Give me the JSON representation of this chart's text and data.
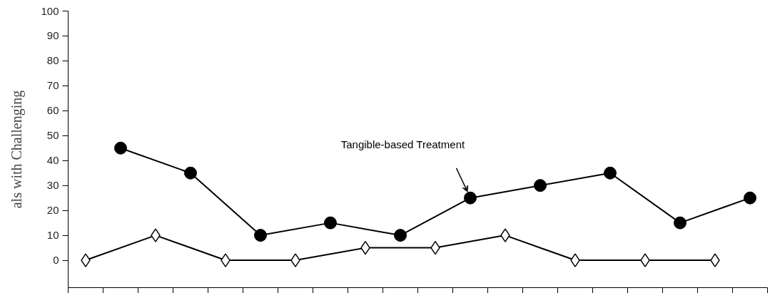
{
  "chart_data": {
    "type": "line",
    "ylabel": "als with Challenging",
    "ylim": [
      -11,
      100
    ],
    "categories": [
      null,
      null,
      null,
      null,
      null,
      null,
      null,
      null,
      null,
      null,
      null,
      null,
      null,
      null,
      null,
      null,
      null,
      null,
      null,
      null
    ],
    "yticks": [
      0,
      10,
      20,
      30,
      40,
      50,
      60,
      70,
      80,
      90,
      100
    ],
    "tick_labels": "y",
    "grid": false,
    "line_style": "solid",
    "series": [
      {
        "color": "#000000",
        "marker": "diamond",
        "values": [
          0,
          null,
          10,
          null,
          0,
          null,
          0,
          null,
          5,
          null,
          5,
          null,
          10,
          null,
          0,
          null,
          0,
          null,
          0,
          null
        ]
      },
      {
        "color": "#000000",
        "marker": "circle",
        "values": [
          null,
          45,
          null,
          35,
          null,
          10,
          null,
          15,
          null,
          10,
          null,
          25,
          null,
          30,
          null,
          35,
          null,
          15,
          null,
          25
        ]
      }
    ],
    "annotations": [
      "Tangible-based Treatment"
    ]
  }
}
